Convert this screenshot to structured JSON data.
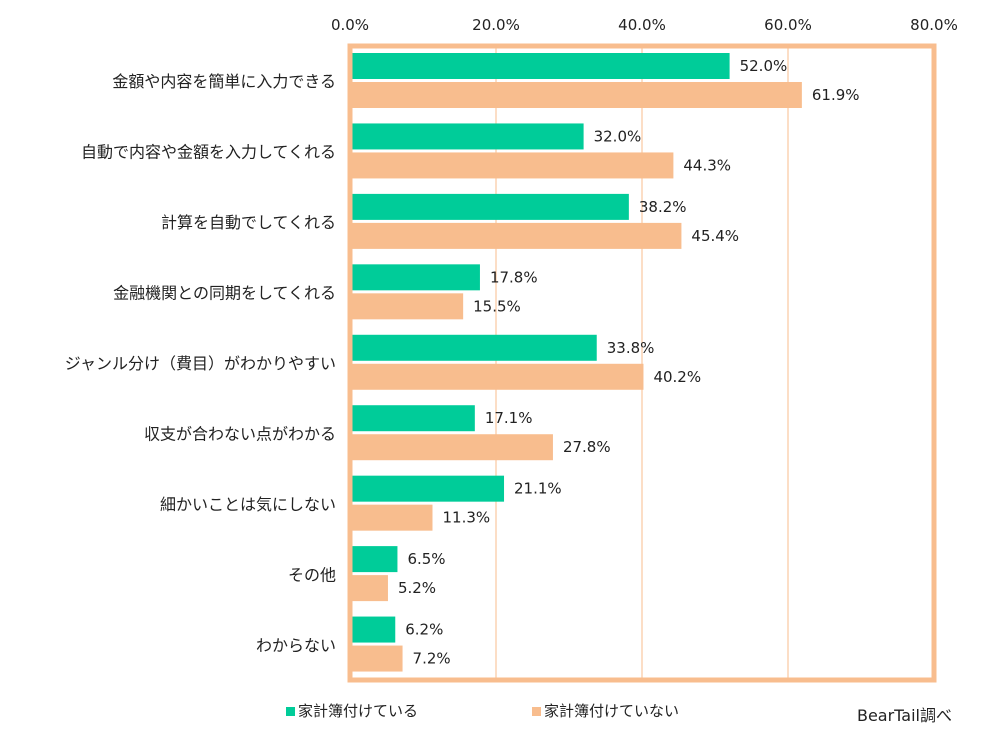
{
  "colors": {
    "series1": "#00CC99",
    "series2": "#F8BD8E",
    "frame": "#F8BD8E",
    "grid": "#F8BD8E"
  },
  "chart_data": {
    "type": "bar",
    "orientation": "horizontal",
    "categories": [
      "金額や内容を簡単に入力できる",
      "自動で内容や金額を入力してくれる",
      "計算を自動でしてくれる",
      "金融機関との同期をしてくれる",
      "ジャンル分け（費目）がわかりやすい",
      "収支が合わない点がわかる",
      "細かいことは気にしない",
      "その他",
      "わからない"
    ],
    "series": [
      {
        "name": "家計簿付けている",
        "values": [
          52.0,
          32.0,
          38.2,
          17.8,
          33.8,
          17.1,
          21.1,
          6.5,
          6.2
        ],
        "labels": [
          "52.0%",
          "32.0%",
          "38.2%",
          "17.8%",
          "33.8%",
          "17.1%",
          "21.1%",
          "6.5%",
          "6.2%"
        ]
      },
      {
        "name": "家計簿付けていない",
        "values": [
          61.9,
          44.3,
          45.4,
          15.5,
          40.2,
          27.8,
          11.3,
          5.2,
          7.2
        ],
        "labels": [
          "61.9%",
          "44.3%",
          "45.4%",
          "15.5%",
          "40.2%",
          "27.8%",
          "11.3%",
          "5.2%",
          "7.2%"
        ]
      }
    ],
    "xlim": [
      0,
      80
    ],
    "ticks": [
      0,
      20,
      40,
      60,
      80
    ],
    "tick_labels": [
      "0.0%",
      "20.0%",
      "40.0%",
      "60.0%",
      "80.0%"
    ],
    "axis_position": "top",
    "grid": true,
    "legend_position": "bottom"
  },
  "source": "BearTail調べ"
}
